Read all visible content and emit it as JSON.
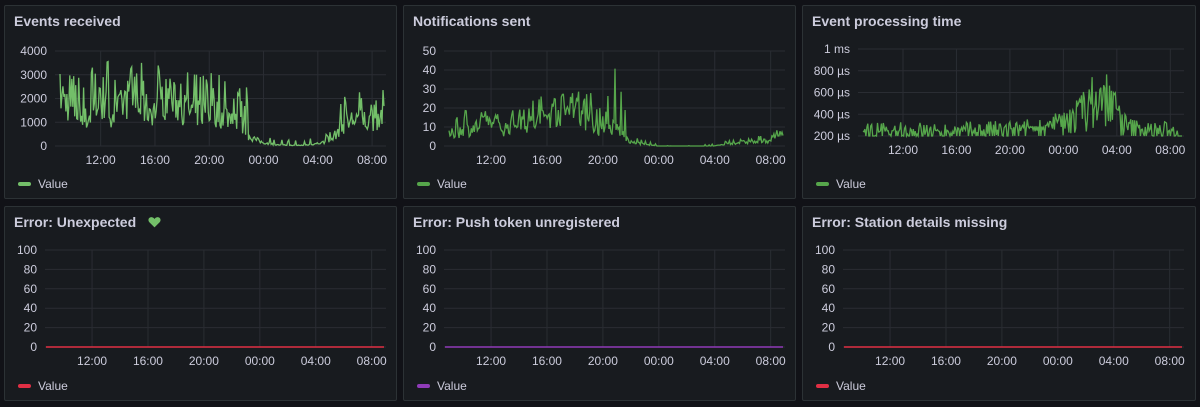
{
  "dashboard": {
    "panels": [
      {
        "title": "Events received",
        "legend": "Value",
        "color": "#73bf69",
        "has_heart_icon": false,
        "chart_data": {
          "type": "line",
          "y_ticks": [
            "4000",
            "3000",
            "2000",
            "1000",
            "0"
          ],
          "x_ticks": [
            "12:00",
            "16:00",
            "20:00",
            "00:00",
            "04:00",
            "08:00"
          ],
          "x": [
            "09:00",
            "10:00",
            "11:00",
            "12:00",
            "13:00",
            "14:00",
            "15:00",
            "16:00",
            "17:00",
            "18:00",
            "19:00",
            "20:00",
            "21:00",
            "22:00",
            "23:00",
            "00:00",
            "01:00",
            "02:00",
            "03:00",
            "04:00",
            "05:00",
            "06:00",
            "07:00",
            "08:00",
            "08:30"
          ],
          "values": [
            2200,
            1500,
            1100,
            1900,
            1300,
            2000,
            1600,
            1500,
            2100,
            1600,
            1400,
            1500,
            1300,
            1200,
            400,
            150,
            50,
            30,
            30,
            100,
            200,
            900,
            1200,
            1000,
            1400
          ],
          "peak_values": [
            3400,
            3000,
            3800,
            3600,
            3700,
            3300,
            3500,
            3600,
            3100,
            3500,
            3000,
            3200,
            3300,
            2600,
            2600,
            900,
            300,
            300,
            200,
            500,
            600,
            2300,
            2400,
            1800,
            2400
          ],
          "ylim": [
            0,
            4000
          ]
        }
      },
      {
        "title": "Notifications sent",
        "legend": "Value",
        "color": "#56a64b",
        "has_heart_icon": false,
        "chart_data": {
          "type": "line",
          "y_ticks": [
            "50",
            "40",
            "30",
            "20",
            "10",
            "0"
          ],
          "x_ticks": [
            "12:00",
            "16:00",
            "20:00",
            "00:00",
            "04:00",
            "08:00"
          ],
          "x": [
            "09:00",
            "10:00",
            "11:00",
            "12:00",
            "13:00",
            "14:00",
            "15:00",
            "16:00",
            "17:00",
            "18:00",
            "19:00",
            "20:00",
            "21:00",
            "22:00",
            "23:00",
            "00:00",
            "01:00",
            "02:00",
            "03:00",
            "04:00",
            "05:00",
            "06:00",
            "07:00",
            "08:00",
            "08:30"
          ],
          "values": [
            6,
            8,
            10,
            12,
            9,
            14,
            11,
            16,
            18,
            20,
            13,
            8,
            10,
            2,
            1,
            0,
            0,
            0,
            0,
            0,
            1,
            2,
            2,
            3,
            7
          ],
          "peak_values": [
            14,
            20,
            22,
            18,
            16,
            24,
            26,
            30,
            27,
            34,
            30,
            20,
            45,
            9,
            3,
            1,
            0,
            0,
            1,
            1,
            3,
            4,
            5,
            6,
            10
          ],
          "ylim": [
            0,
            50
          ]
        }
      },
      {
        "title": "Event processing time",
        "legend": "Value",
        "color": "#56a64b",
        "has_heart_icon": false,
        "chart_data": {
          "type": "line",
          "y_ticks": [
            "1 ms",
            "800 µs",
            "600 µs",
            "400 µs",
            "200 µs"
          ],
          "x_ticks": [
            "12:00",
            "16:00",
            "20:00",
            "00:00",
            "04:00",
            "08:00"
          ],
          "x": [
            "09:00",
            "10:00",
            "11:00",
            "12:00",
            "13:00",
            "14:00",
            "15:00",
            "16:00",
            "17:00",
            "18:00",
            "19:00",
            "20:00",
            "21:00",
            "22:00",
            "23:00",
            "00:00",
            "01:00",
            "02:00",
            "03:00",
            "04:00",
            "05:00",
            "06:00",
            "07:00",
            "08:00",
            "08:30"
          ],
          "values": [
            230,
            225,
            230,
            228,
            232,
            230,
            228,
            232,
            230,
            234,
            235,
            240,
            245,
            255,
            270,
            300,
            380,
            450,
            520,
            420,
            260,
            240,
            235,
            230,
            232
          ],
          "peak_values": [
            250,
            245,
            250,
            248,
            252,
            255,
            250,
            260,
            255,
            258,
            260,
            265,
            280,
            300,
            330,
            400,
            550,
            700,
            900,
            600,
            320,
            270,
            260,
            255,
            255
          ],
          "ylim": [
            0,
            1000
          ]
        }
      },
      {
        "title": "Error: Unexpected",
        "legend": "Value",
        "color": "#e02f44",
        "has_heart_icon": true,
        "chart_data": {
          "type": "line",
          "y_ticks": [
            "100",
            "80",
            "60",
            "40",
            "20",
            "0"
          ],
          "x_ticks": [
            "12:00",
            "16:00",
            "20:00",
            "00:00",
            "04:00",
            "08:00"
          ],
          "values": [
            0,
            0
          ],
          "ylim": [
            0,
            100
          ]
        }
      },
      {
        "title": "Error: Push token unregistered",
        "legend": "Value",
        "color": "#8f3bb8",
        "has_heart_icon": false,
        "chart_data": {
          "type": "line",
          "y_ticks": [
            "100",
            "80",
            "60",
            "40",
            "20",
            "0"
          ],
          "x_ticks": [
            "12:00",
            "16:00",
            "20:00",
            "00:00",
            "04:00",
            "08:00"
          ],
          "values": [
            0,
            0
          ],
          "ylim": [
            0,
            100
          ]
        }
      },
      {
        "title": "Error: Station details missing",
        "legend": "Value",
        "color": "#e02f44",
        "has_heart_icon": false,
        "chart_data": {
          "type": "line",
          "y_ticks": [
            "100",
            "80",
            "60",
            "40",
            "20",
            "0"
          ],
          "x_ticks": [
            "12:00",
            "16:00",
            "20:00",
            "00:00",
            "04:00",
            "08:00"
          ],
          "values": [
            0,
            0
          ],
          "ylim": [
            0,
            100
          ]
        }
      }
    ],
    "heart_icon_color": "#73bf69"
  }
}
